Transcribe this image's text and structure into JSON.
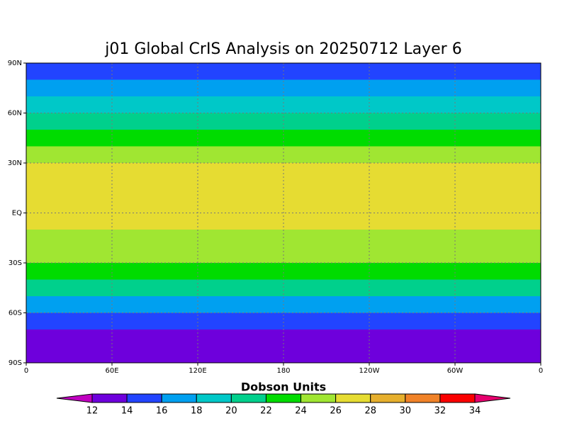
{
  "chart_data": {
    "type": "zonal-contour-map",
    "title": "j01 Global CrIS Analysis on 20250712 Layer 6",
    "colorbar_label": "Dobson Units",
    "xlim": [
      0,
      360
    ],
    "xticks": [
      0,
      {
        "value": 60,
        "label": "60E"
      },
      {
        "value": 120,
        "label": "120E"
      },
      180,
      {
        "value": 240,
        "label": "120W"
      },
      {
        "value": 300,
        "label": "60W"
      },
      {
        "value": 360,
        "label": "0"
      }
    ],
    "ylim": [
      -90,
      90
    ],
    "yticks": [
      {
        "value": 90,
        "label": "90N"
      },
      {
        "value": 60,
        "label": "60N"
      },
      {
        "value": 30,
        "label": "30N"
      },
      {
        "value": 0,
        "label": "EQ"
      },
      {
        "value": -30,
        "label": "30S"
      },
      {
        "value": -60,
        "label": "60S"
      },
      {
        "value": -90,
        "label": "90S"
      }
    ],
    "grid": true,
    "levels": [
      12,
      14,
      16,
      18,
      20,
      22,
      24,
      26,
      28,
      30,
      32,
      34
    ],
    "colors": [
      "#c000c0",
      "#6e00dc",
      "#2244ff",
      "#00a0f0",
      "#00c8c8",
      "#00d08c",
      "#00dc00",
      "#a0e632",
      "#e6dc32",
      "#e6af2d",
      "#f08228",
      "#fa0000",
      "#e6006e"
    ],
    "y": [
      85,
      75,
      65,
      55,
      45,
      35,
      25,
      15,
      5,
      -5,
      -15,
      -25,
      -35,
      -45,
      -55,
      -65,
      -75,
      -85
    ],
    "values": [
      15,
      17,
      19,
      21,
      23,
      25,
      27,
      27,
      27,
      27,
      25,
      25,
      23,
      21,
      17,
      15,
      13,
      13
    ]
  }
}
